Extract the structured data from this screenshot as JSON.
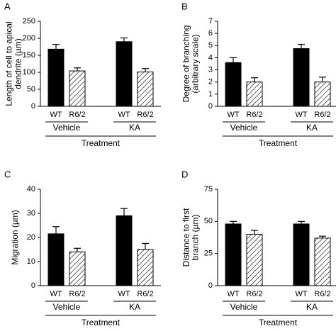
{
  "chart_data": [
    {
      "type": "bar",
      "panel": "A",
      "ylabel": [
        "Length of cell to apical",
        "dendrite (µm)"
      ],
      "categories": [
        "WT",
        "R6/2",
        "WT",
        "R6/2"
      ],
      "groups": [
        "Vehicle",
        "KA"
      ],
      "xlabel": "Treatment",
      "values": [
        168,
        104,
        190,
        101
      ],
      "errors": [
        14,
        9,
        11,
        10
      ],
      "patterns": [
        "solid",
        "hatched",
        "solid",
        "hatched"
      ],
      "color": "#000000",
      "ylim": [
        0,
        250
      ],
      "yticks": [
        0,
        50,
        100,
        150,
        200,
        250
      ]
    },
    {
      "type": "bar",
      "panel": "B",
      "ylabel": [
        "Degree of branching",
        "(arbitrary scale)"
      ],
      "categories": [
        "WT",
        "R6/2",
        "WT",
        "R6/2"
      ],
      "groups": [
        "Vehicle",
        "KA"
      ],
      "xlabel": "Treatment",
      "values": [
        3.6,
        2.0,
        4.75,
        2.0
      ],
      "errors": [
        0.4,
        0.35,
        0.35,
        0.4
      ],
      "patterns": [
        "solid",
        "hatched",
        "solid",
        "hatched"
      ],
      "color": "#000000",
      "ylim": [
        0,
        7
      ],
      "yticks": [
        0,
        1,
        2,
        3,
        4,
        5,
        6,
        7
      ]
    },
    {
      "type": "bar",
      "panel": "C",
      "ylabel": [
        "Migration (µm)"
      ],
      "categories": [
        "WT",
        "R6/2",
        "WT",
        "R6/2"
      ],
      "groups": [
        "Vehicle",
        "KA"
      ],
      "xlabel": "Treatment",
      "values": [
        21.5,
        14,
        29,
        15
      ],
      "errors": [
        3,
        1.5,
        3,
        2.5
      ],
      "patterns": [
        "solid",
        "hatched",
        "solid",
        "hatched"
      ],
      "color": "#000000",
      "ylim": [
        0,
        40
      ],
      "yticks": [
        0,
        10,
        20,
        30,
        40
      ]
    },
    {
      "type": "bar",
      "panel": "D",
      "ylabel": [
        "Distance to first",
        "branch (µm)"
      ],
      "categories": [
        "WT",
        "R6/2",
        "WT",
        "R6/2"
      ],
      "groups": [
        "Vehicle",
        "KA"
      ],
      "xlabel": "Treatment",
      "values": [
        48,
        40,
        48,
        37
      ],
      "errors": [
        2,
        3,
        2,
        1.5
      ],
      "patterns": [
        "solid",
        "hatched",
        "solid",
        "hatched"
      ],
      "color": "#000000",
      "ylim": [
        0,
        75
      ],
      "yticks": [
        0,
        25,
        50,
        75
      ]
    }
  ]
}
